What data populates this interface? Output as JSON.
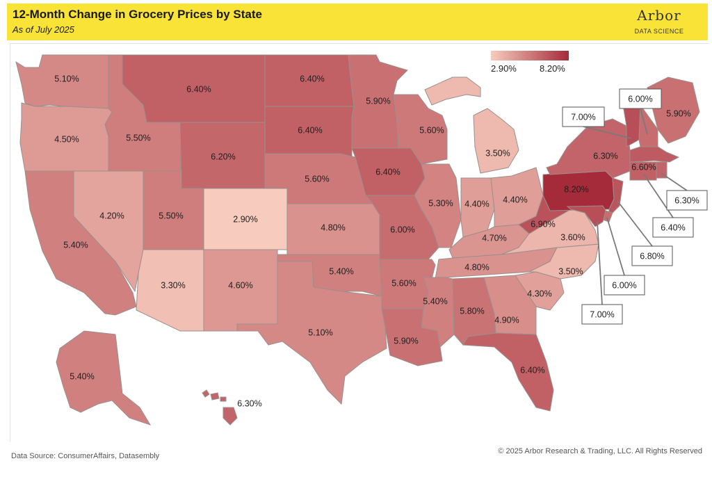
{
  "header": {
    "title": "12-Month Change in Grocery Prices by State",
    "subtitle": "As of July 2025",
    "logo_word": "Arbor",
    "logo_sub": "DATA SCIENCE"
  },
  "legend": {
    "min_label": "2.90%",
    "max_label": "8.20%",
    "min_value": 2.9,
    "max_value": 8.2,
    "color_low": "#f7cbbd",
    "color_high": "#a52b3a"
  },
  "footer": {
    "source": "Data Source: ConsumerAffairs, Datasembly",
    "copyright": "© 2025 Arbor Research & Trading, LLC. All Rights Reserved"
  },
  "states": [
    {
      "code": "WA",
      "label": "5.10%",
      "value": 5.1
    },
    {
      "code": "OR",
      "label": "4.50%",
      "value": 4.5
    },
    {
      "code": "CA",
      "label": "5.40%",
      "value": 5.4
    },
    {
      "code": "NV",
      "label": "4.20%",
      "value": 4.2
    },
    {
      "code": "ID",
      "label": "5.50%",
      "value": 5.5
    },
    {
      "code": "MT",
      "label": "6.40%",
      "value": 6.4
    },
    {
      "code": "WY",
      "label": "6.20%",
      "value": 6.2
    },
    {
      "code": "UT",
      "label": "5.50%",
      "value": 5.5
    },
    {
      "code": "AZ",
      "label": "3.30%",
      "value": 3.3
    },
    {
      "code": "CO",
      "label": "2.90%",
      "value": 2.9
    },
    {
      "code": "NM",
      "label": "4.60%",
      "value": 4.6
    },
    {
      "code": "ND",
      "label": "6.40%",
      "value": 6.4
    },
    {
      "code": "SD",
      "label": "6.40%",
      "value": 6.4
    },
    {
      "code": "NE",
      "label": "5.60%",
      "value": 5.6
    },
    {
      "code": "KS",
      "label": "4.80%",
      "value": 4.8
    },
    {
      "code": "OK",
      "label": "5.40%",
      "value": 5.4
    },
    {
      "code": "TX",
      "label": "5.10%",
      "value": 5.1
    },
    {
      "code": "MN",
      "label": "5.90%",
      "value": 5.9
    },
    {
      "code": "IA",
      "label": "6.40%",
      "value": 6.4
    },
    {
      "code": "MO",
      "label": "6.00%",
      "value": 6.0
    },
    {
      "code": "AR",
      "label": "5.60%",
      "value": 5.6
    },
    {
      "code": "LA",
      "label": "5.90%",
      "value": 5.9
    },
    {
      "code": "WI",
      "label": "5.60%",
      "value": 5.6
    },
    {
      "code": "IL",
      "label": "5.30%",
      "value": 5.3
    },
    {
      "code": "MI",
      "label": "3.50%",
      "value": 3.5
    },
    {
      "code": "IN",
      "label": "4.40%",
      "value": 4.4
    },
    {
      "code": "OH",
      "label": "4.40%",
      "value": 4.4
    },
    {
      "code": "KY",
      "label": "4.70%",
      "value": 4.7
    },
    {
      "code": "TN",
      "label": "4.80%",
      "value": 4.8
    },
    {
      "code": "MS",
      "label": "5.40%",
      "value": 5.4
    },
    {
      "code": "AL",
      "label": "5.80%",
      "value": 5.8
    },
    {
      "code": "GA",
      "label": "4.90%",
      "value": 4.9
    },
    {
      "code": "FL",
      "label": "6.40%",
      "value": 6.4
    },
    {
      "code": "SC",
      "label": "4.30%",
      "value": 4.3
    },
    {
      "code": "NC",
      "label": "3.50%",
      "value": 3.5
    },
    {
      "code": "VA",
      "label": "3.60%",
      "value": 3.6
    },
    {
      "code": "WV",
      "label": "6.90%",
      "value": 6.9
    },
    {
      "code": "PA",
      "label": "8.20%",
      "value": 8.2
    },
    {
      "code": "NY",
      "label": "6.30%",
      "value": 6.3
    },
    {
      "code": "ME",
      "label": "5.90%",
      "value": 5.9
    },
    {
      "code": "VT",
      "label": "7.00%",
      "value": 7.0
    },
    {
      "code": "NH",
      "label": "6.00%",
      "value": 6.0
    },
    {
      "code": "MA",
      "label": "6.60%",
      "value": 6.6
    },
    {
      "code": "RI",
      "label": "6.30%",
      "value": 6.3
    },
    {
      "code": "CT",
      "label": "6.40%",
      "value": 6.4
    },
    {
      "code": "NJ",
      "label": "6.80%",
      "value": 6.8
    },
    {
      "code": "DE",
      "label": "6.00%",
      "value": 6.0
    },
    {
      "code": "MD",
      "label": "7.00%",
      "value": 7.0
    },
    {
      "code": "AK",
      "label": "5.40%",
      "value": 5.4
    },
    {
      "code": "HI",
      "label": "6.30%",
      "value": 6.3
    }
  ]
}
